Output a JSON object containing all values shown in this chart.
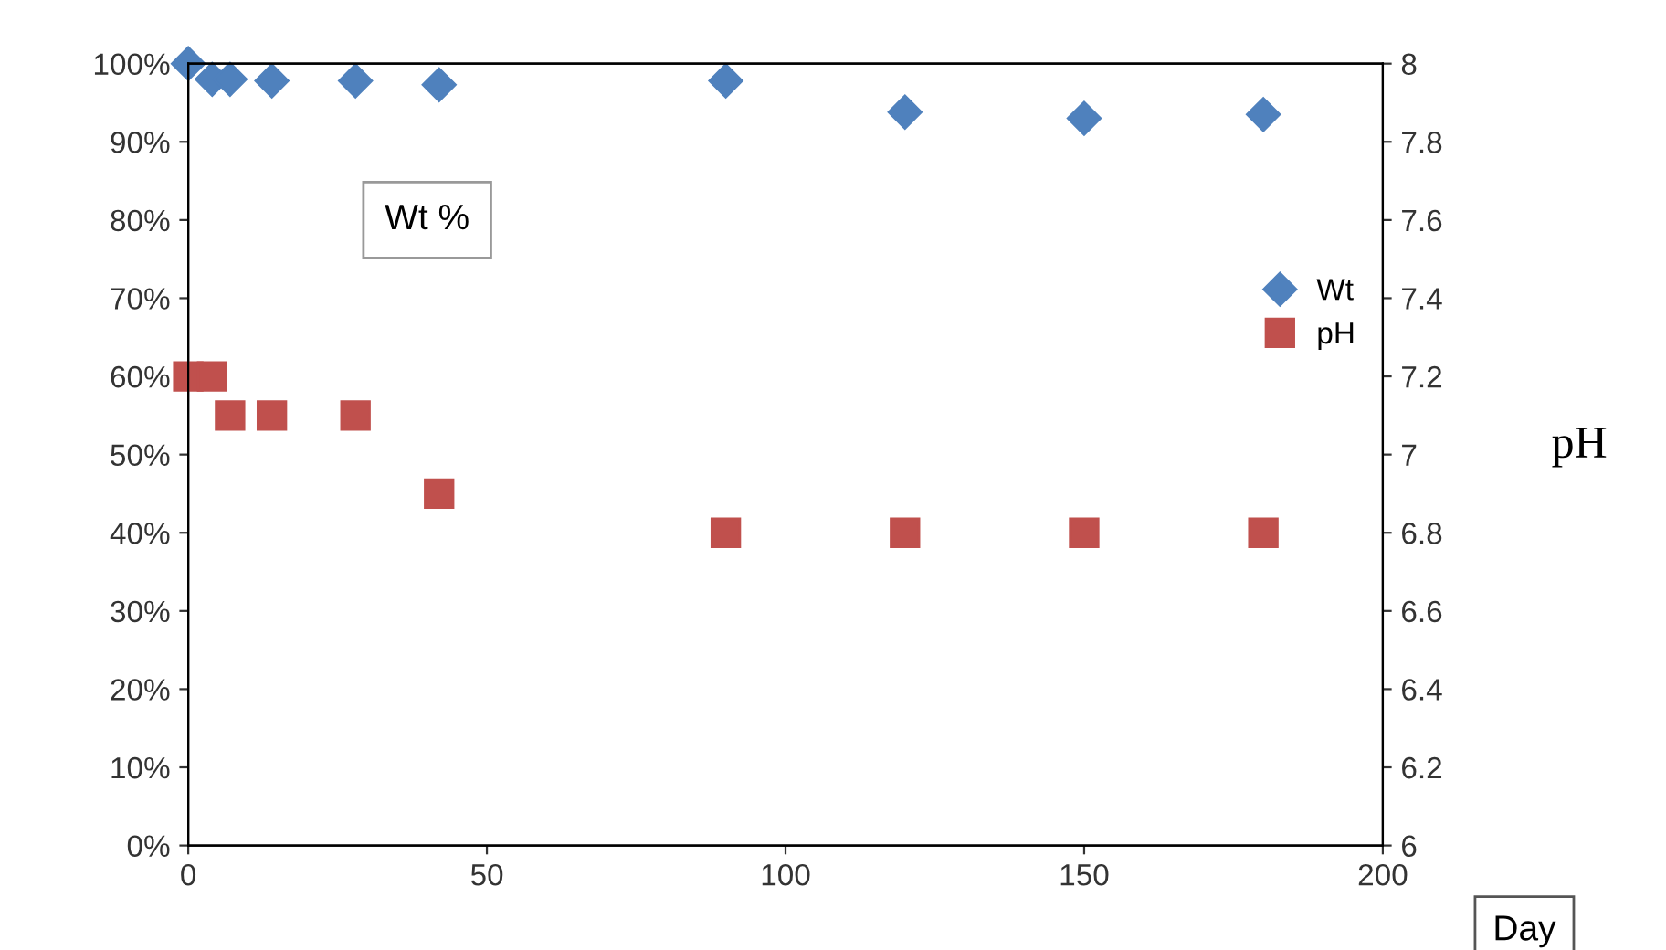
{
  "chart_data": {
    "type": "scatter",
    "xlabel": "Day",
    "ylabel": "Wt %",
    "y2label": "pH",
    "series": [
      {
        "name": "Wt",
        "color": "#4f81bd",
        "marker": "diamond",
        "x": [
          0,
          4,
          7,
          14,
          28,
          42,
          90,
          120,
          150,
          180
        ],
        "values": [
          100,
          98,
          98,
          97.8,
          97.8,
          97.3,
          97.8,
          93.8,
          93,
          93.5
        ]
      },
      {
        "name": "pH",
        "color": "#c0504d",
        "marker": "square",
        "axis": "y2",
        "x": [
          0,
          4,
          7,
          14,
          28,
          42,
          90,
          120,
          150,
          180
        ],
        "values": [
          7.2,
          7.2,
          7.1,
          7.1,
          7.1,
          6.9,
          6.8,
          6.8,
          6.8,
          6.8
        ]
      }
    ],
    "xlim": [
      0,
      200
    ],
    "xticks": [
      0,
      50,
      100,
      150,
      200
    ],
    "ylim": [
      0,
      100
    ],
    "yticks": [
      {
        "value": 0,
        "label": "0%"
      },
      {
        "value": 10,
        "label": "10%"
      },
      {
        "value": 20,
        "label": "20%"
      },
      {
        "value": 30,
        "label": "30%"
      },
      {
        "value": 40,
        "label": "40%"
      },
      {
        "value": 50,
        "label": "50%"
      },
      {
        "value": 60,
        "label": "60%"
      },
      {
        "value": 70,
        "label": "70%"
      },
      {
        "value": 80,
        "label": "80%"
      },
      {
        "value": 90,
        "label": "90%"
      },
      {
        "value": 100,
        "label": "100%"
      }
    ],
    "y2lim": [
      6,
      8
    ],
    "y2ticks": [
      6,
      6.2,
      6.4,
      6.6,
      6.8,
      7,
      7.2,
      7.4,
      7.6,
      7.8,
      8
    ],
    "grid": false,
    "legend": "right"
  }
}
